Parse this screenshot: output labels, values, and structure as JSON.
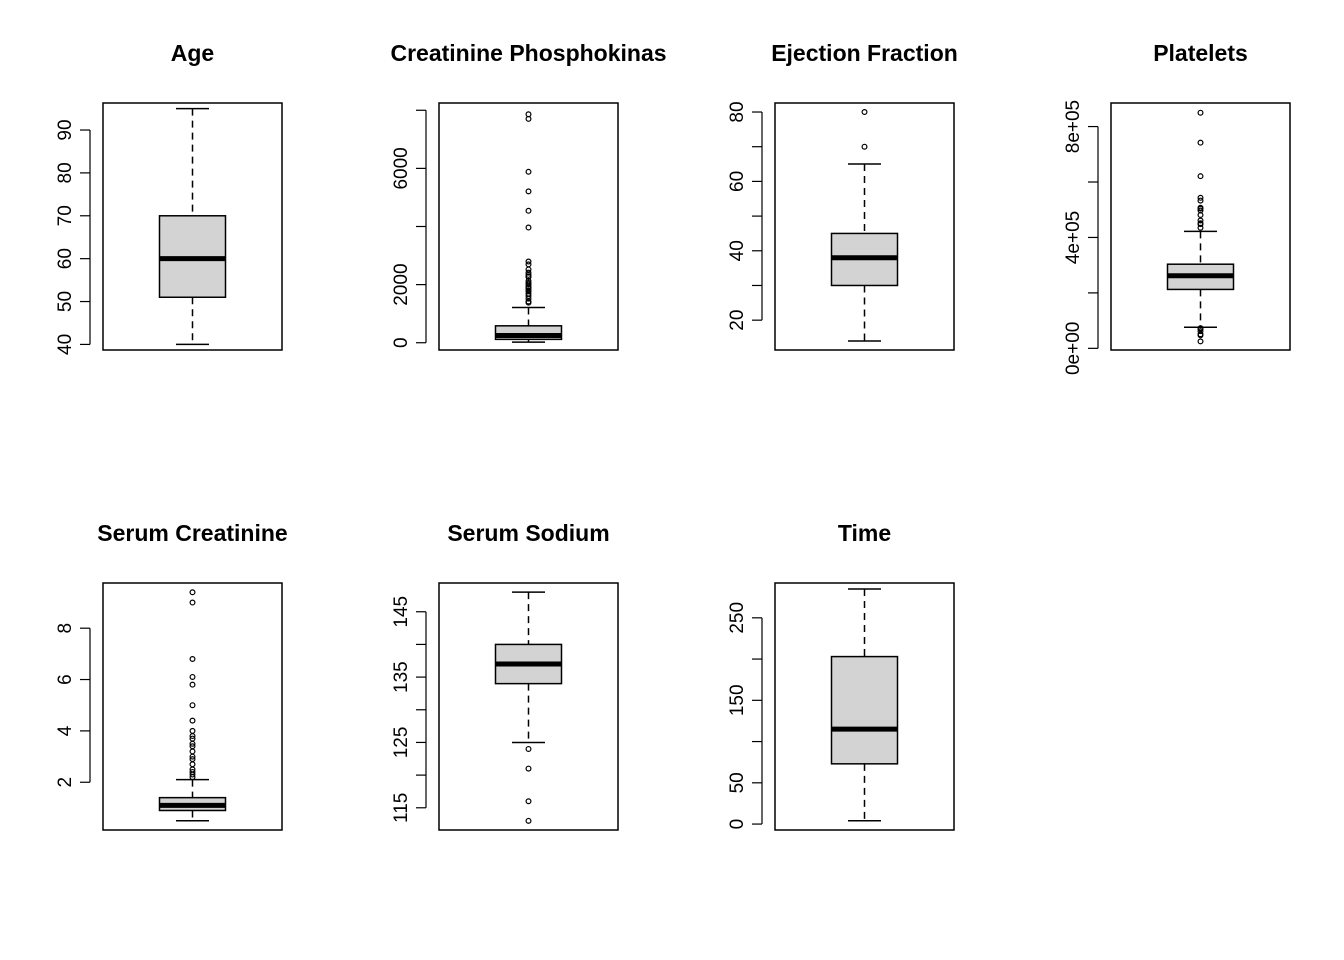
{
  "colors": {
    "box_fill": "#d3d3d3",
    "stroke": "#000000",
    "background": "#ffffff"
  },
  "chart_data": [
    {
      "type": "boxplot",
      "title": "Age",
      "ylim": [
        38.7,
        96.3
      ],
      "ticks": [
        40,
        50,
        60,
        70,
        80,
        90
      ],
      "tick_labels": [
        "40",
        "50",
        "60",
        "70",
        "80",
        "90"
      ],
      "whisker_low": 40,
      "q1": 51,
      "median": 60,
      "q3": 70,
      "whisker_high": 95,
      "outliers": []
    },
    {
      "type": "boxplot",
      "title": "Creatinine Phosphokinas",
      "ylim": [
        -250,
        8250
      ],
      "ticks": [
        0,
        2000,
        4000,
        6000,
        8000
      ],
      "tick_labels": [
        "0",
        "2000",
        "",
        "6000",
        ""
      ],
      "whisker_low": 23,
      "q1": 116,
      "median": 250,
      "q3": 582,
      "whisker_high": 1211,
      "outliers": [
        1380,
        1419,
        1517,
        1610,
        1688,
        1767,
        1808,
        1876,
        1896,
        1947,
        2017,
        2060,
        2128,
        2261,
        2281,
        2334,
        2413,
        2522,
        2695,
        2794,
        3964,
        4540,
        5209,
        5882,
        7702,
        7861
      ]
    },
    {
      "type": "boxplot",
      "title": "Ejection Fraction",
      "ylim": [
        11.4,
        82.6
      ],
      "ticks": [
        20,
        30,
        40,
        50,
        60,
        70,
        80
      ],
      "tick_labels": [
        "20",
        "",
        "40",
        "",
        "60",
        "",
        "80"
      ],
      "whisker_low": 14,
      "q1": 30,
      "median": 38,
      "q3": 45,
      "whisker_high": 65,
      "outliers": [
        70,
        80
      ]
    },
    {
      "type": "boxplot",
      "title": "Platelets",
      "ylim": [
        -6000,
        885000
      ],
      "ticks": [
        0,
        200000,
        400000,
        600000,
        800000
      ],
      "tick_labels": [
        "0e+00",
        "",
        "4e+05",
        "",
        "8e+05"
      ],
      "whisker_low": 76000,
      "q1": 212500,
      "median": 262000,
      "q3": 303500,
      "whisker_high": 422000,
      "outliers": [
        25100,
        47000,
        51000,
        62000,
        70000,
        73000,
        435000,
        448000,
        451000,
        461000,
        481000,
        497000,
        504000,
        507000,
        533000,
        543000,
        621000,
        742000,
        850000
      ]
    },
    {
      "type": "boxplot",
      "title": "Serum Creatinine",
      "ylim": [
        0.14,
        9.76
      ],
      "ticks": [
        2,
        4,
        6,
        8
      ],
      "tick_labels": [
        "2",
        "4",
        "6",
        "8"
      ],
      "whisker_low": 0.5,
      "q1": 0.9,
      "median": 1.1,
      "q3": 1.4,
      "whisker_high": 2.1,
      "outliers": [
        2.2,
        2.3,
        2.4,
        2.5,
        2.7,
        2.9,
        3.0,
        3.2,
        3.4,
        3.5,
        3.7,
        3.8,
        4.0,
        4.4,
        5.0,
        5.8,
        6.1,
        6.8,
        9.0,
        9.4
      ]
    },
    {
      "type": "boxplot",
      "title": "Serum Sodium",
      "ylim": [
        111.6,
        149.4
      ],
      "ticks": [
        115,
        120,
        125,
        130,
        135,
        140,
        145
      ],
      "tick_labels": [
        "115",
        "",
        "125",
        "",
        "135",
        "",
        "145"
      ],
      "whisker_low": 125,
      "q1": 134,
      "median": 137,
      "q3": 140,
      "whisker_high": 148,
      "outliers": [
        124,
        121,
        116,
        113
      ]
    },
    {
      "type": "boxplot",
      "title": "Time",
      "ylim": [
        -7.2,
        292.2
      ],
      "ticks": [
        0,
        50,
        100,
        150,
        200,
        250
      ],
      "tick_labels": [
        "0",
        "50",
        "",
        "150",
        "",
        "250"
      ],
      "whisker_low": 4,
      "q1": 73,
      "median": 115,
      "q3": 203,
      "whisker_high": 285,
      "outliers": []
    }
  ]
}
